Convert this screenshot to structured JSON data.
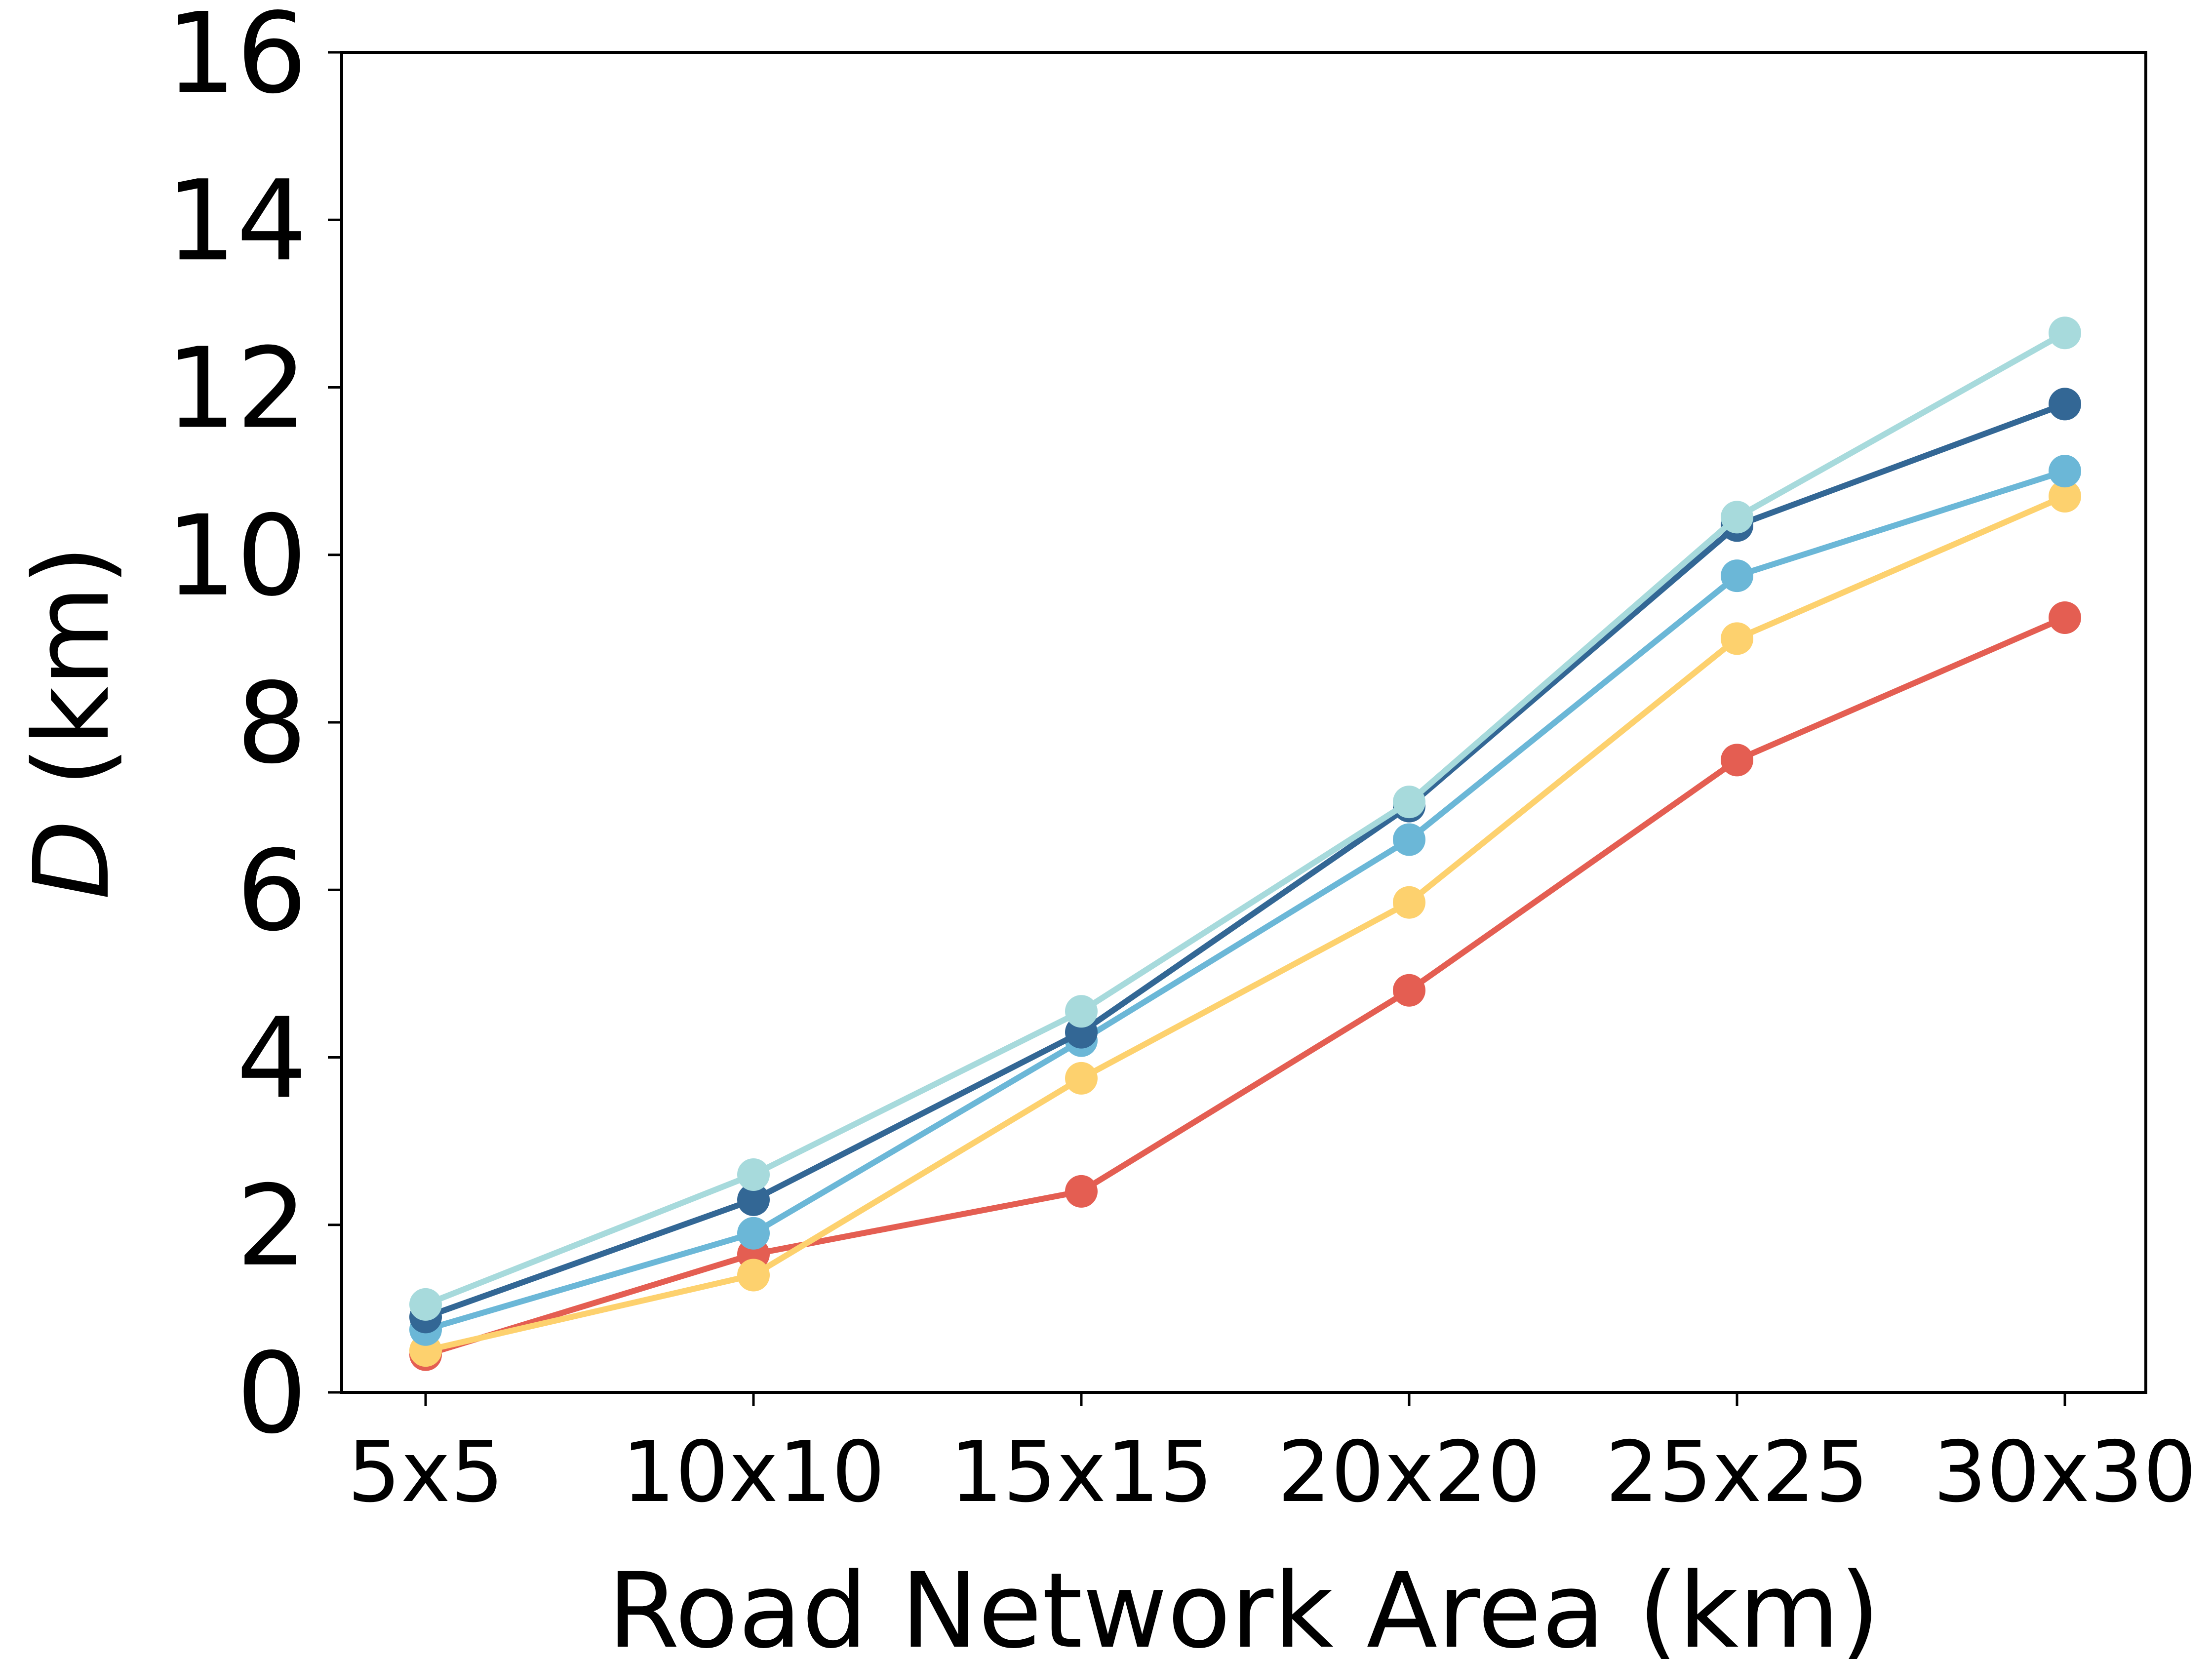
{
  "chart_data": {
    "type": "line",
    "title": "",
    "xlabel": "Road Network Area (km)",
    "ylabel_italic": "D",
    "ylabel_rest": " (km)",
    "categories": [
      "5x5",
      "10x10",
      "15x15",
      "20x20",
      "25x25",
      "30x30"
    ],
    "ylim": [
      0,
      16
    ],
    "yticks": [
      0,
      2,
      4,
      6,
      8,
      10,
      12,
      14,
      16
    ],
    "grid": false,
    "legend": "none",
    "series": [
      {
        "color": "#e45e52",
        "values": [
          0.45,
          1.65,
          2.4,
          4.8,
          7.55,
          9.25
        ]
      },
      {
        "color": "#fdd16e",
        "values": [
          0.5,
          1.4,
          3.75,
          5.85,
          9.0,
          10.7
        ]
      },
      {
        "color": "#6bb7d7",
        "values": [
          0.75,
          1.9,
          4.2,
          6.6,
          9.75,
          11.0
        ]
      },
      {
        "color": "#336795",
        "values": [
          0.9,
          2.3,
          4.3,
          7.0,
          10.35,
          11.8
        ]
      },
      {
        "color": "#a7dadc",
        "values": [
          1.05,
          2.6,
          4.55,
          7.05,
          10.45,
          12.65
        ]
      }
    ]
  }
}
